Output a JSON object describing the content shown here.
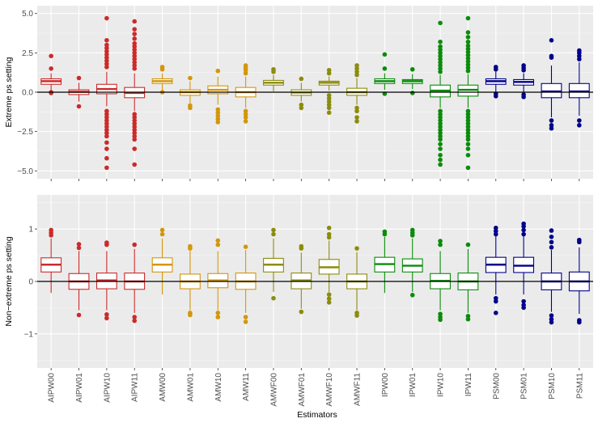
{
  "chart_data": {
    "type": "boxplot",
    "xlabel": "Estimators",
    "categories": [
      "AIPW00",
      "AIPW01",
      "AIPW10",
      "AIPW11",
      "AMW00",
      "AMW01",
      "AMW10",
      "AMW11",
      "AMWF00",
      "AMWF01",
      "AMWF10",
      "AMWF11",
      "IPW00",
      "IPW01",
      "IPW10",
      "IPW11",
      "PSM00",
      "PSM01",
      "PSM10",
      "PSM11"
    ],
    "group_colors": {
      "AIPW": "#cc2a2a",
      "AMW": "#d4960a",
      "AMWF": "#8c8c0c",
      "IPW": "#0a8c0a",
      "PSM": "#00008c"
    },
    "reference_line": 0,
    "panels": [
      {
        "ylabel": "Extreme ps setting",
        "ylim": [
          -5.5,
          5.5
        ],
        "yticks": [
          -5.0,
          -2.5,
          0.0,
          2.5,
          5.0
        ],
        "ytick_labels": [
          "−5.0",
          "−2.5",
          "0.0",
          "2.5",
          "5.0"
        ],
        "boxes": [
          {
            "q1": 0.5,
            "median": 0.7,
            "q3": 0.85,
            "wlo": 0.0,
            "whi": 1.2,
            "outliers": [
              1.5,
              2.3,
              0.0,
              -0.05
            ]
          },
          {
            "q1": -0.15,
            "median": 0.02,
            "q3": 0.15,
            "wlo": -0.6,
            "whi": 0.6,
            "outliers": [
              0.9,
              -0.9
            ]
          },
          {
            "q1": -0.1,
            "median": 0.2,
            "q3": 0.5,
            "wlo": -0.9,
            "whi": 1.3,
            "outliers": [
              1.6,
              1.8,
              2.0,
              2.2,
              2.4,
              2.6,
              2.8,
              3.0,
              3.3,
              4.7,
              -1.2,
              -1.4,
              -1.6,
              -1.8,
              -2.0,
              -2.2,
              -2.4,
              -2.6,
              -2.8,
              -3.2,
              -3.6,
              -4.2,
              -4.8
            ]
          },
          {
            "q1": -0.35,
            "median": -0.05,
            "q3": 0.3,
            "wlo": -1.2,
            "whi": 1.2,
            "outliers": [
              1.5,
              1.7,
              1.9,
              2.1,
              2.3,
              2.5,
              2.7,
              2.9,
              3.1,
              3.4,
              3.7,
              4.0,
              4.5,
              -1.4,
              -1.6,
              -1.8,
              -2.0,
              -2.2,
              -2.4,
              -2.6,
              -2.8,
              -3.0,
              -3.6,
              -4.6
            ]
          },
          {
            "q1": 0.55,
            "median": 0.7,
            "q3": 0.85,
            "wlo": 0.1,
            "whi": 1.2,
            "outliers": [
              1.45,
              1.6,
              0.0
            ]
          },
          {
            "q1": -0.2,
            "median": 0.0,
            "q3": 0.15,
            "wlo": -0.7,
            "whi": 0.7,
            "outliers": [
              0.9,
              -0.85,
              -1.0
            ]
          },
          {
            "q1": -0.1,
            "median": 0.15,
            "q3": 0.4,
            "wlo": -0.8,
            "whi": 1.0,
            "outliers": [
              1.35,
              -1.1,
              -1.3,
              -1.5,
              -1.7,
              -1.9
            ]
          },
          {
            "q1": -0.3,
            "median": 0.0,
            "q3": 0.3,
            "wlo": -1.0,
            "whi": 1.0,
            "outliers": [
              1.2,
              1.4,
              1.55,
              1.7,
              -1.2,
              -1.4,
              -1.6,
              -1.85
            ]
          },
          {
            "q1": 0.45,
            "median": 0.6,
            "q3": 0.75,
            "wlo": 0.05,
            "whi": 1.1,
            "outliers": [
              1.3,
              1.45
            ]
          },
          {
            "q1": -0.2,
            "median": -0.02,
            "q3": 0.15,
            "wlo": -0.6,
            "whi": 0.6,
            "outliers": [
              0.85,
              -0.8,
              -1.0
            ]
          },
          {
            "q1": 0.45,
            "median": 0.6,
            "q3": 0.7,
            "wlo": 0.1,
            "whi": 1.0,
            "outliers": [
              1.2,
              1.4,
              -0.2,
              -0.4,
              -0.6,
              -0.8,
              -1.0,
              -1.3
            ]
          },
          {
            "q1": -0.2,
            "median": 0.0,
            "q3": 0.25,
            "wlo": -0.8,
            "whi": 0.9,
            "outliers": [
              1.1,
              1.3,
              1.5,
              1.7,
              -1.0,
              -1.2,
              -1.6,
              -1.85
            ]
          },
          {
            "q1": 0.55,
            "median": 0.7,
            "q3": 0.85,
            "wlo": 0.15,
            "whi": 1.2,
            "outliers": [
              1.5,
              2.4,
              -0.1
            ]
          },
          {
            "q1": 0.55,
            "median": 0.7,
            "q3": 0.8,
            "wlo": 0.2,
            "whi": 1.15,
            "outliers": [
              1.45,
              -0.05
            ]
          },
          {
            "q1": -0.3,
            "median": 0.1,
            "q3": 0.45,
            "wlo": -1.0,
            "whi": 1.1,
            "outliers": [
              1.3,
              1.5,
              1.7,
              1.9,
              2.1,
              2.3,
              2.5,
              2.7,
              2.9,
              3.2,
              4.4,
              -1.2,
              -1.4,
              -1.6,
              -1.8,
              -2.0,
              -2.2,
              -2.4,
              -2.6,
              -2.8,
              -3.0,
              -3.3,
              -3.6,
              -4.0,
              -4.3,
              -4.6
            ]
          },
          {
            "q1": -0.25,
            "median": 0.15,
            "q3": 0.45,
            "wlo": -1.0,
            "whi": 1.15,
            "outliers": [
              1.35,
              1.55,
              1.75,
              1.95,
              2.15,
              2.35,
              2.55,
              2.75,
              2.95,
              3.2,
              3.5,
              3.8,
              4.7,
              -1.2,
              -1.4,
              -1.6,
              -1.8,
              -2.0,
              -2.2,
              -2.4,
              -2.6,
              -2.8,
              -3.0,
              -3.3,
              -3.6,
              -4.0,
              -4.8
            ]
          },
          {
            "q1": 0.5,
            "median": 0.7,
            "q3": 0.85,
            "wlo": 0.0,
            "whi": 1.3,
            "outliers": [
              1.45,
              1.6,
              -0.1,
              -0.25
            ]
          },
          {
            "q1": 0.45,
            "median": 0.65,
            "q3": 0.8,
            "wlo": 0.0,
            "whi": 1.2,
            "outliers": [
              1.4,
              1.55,
              1.7,
              -0.15,
              -0.3
            ]
          },
          {
            "q1": -0.35,
            "median": 0.05,
            "q3": 0.55,
            "wlo": -1.6,
            "whi": 1.7,
            "outliers": [
              2.2,
              2.3,
              3.3,
              -1.8,
              -2.1,
              -2.3
            ]
          },
          {
            "q1": -0.35,
            "median": 0.05,
            "q3": 0.55,
            "wlo": -1.5,
            "whi": 1.9,
            "outliers": [
              2.1,
              2.3,
              2.5,
              2.65,
              -1.8,
              -2.1
            ]
          }
        ]
      },
      {
        "ylabel": "Non−extreme ps setting",
        "ylim": [
          -1.65,
          1.65
        ],
        "yticks": [
          -1,
          0,
          1
        ],
        "ytick_labels": [
          "−1",
          "0",
          "1"
        ],
        "boxes": [
          {
            "q1": 0.18,
            "median": 0.32,
            "q3": 0.45,
            "wlo": -0.22,
            "whi": 0.82,
            "outliers": [
              0.88,
              0.93,
              0.98
            ]
          },
          {
            "q1": -0.15,
            "median": 0.0,
            "q3": 0.15,
            "wlo": -0.55,
            "whi": 0.58,
            "outliers": [
              0.64,
              0.71,
              -0.64
            ]
          },
          {
            "q1": -0.14,
            "median": 0.02,
            "q3": 0.16,
            "wlo": -0.55,
            "whi": 0.58,
            "outliers": [
              0.7,
              0.74,
              -0.63,
              -0.7
            ]
          },
          {
            "q1": -0.15,
            "median": 0.0,
            "q3": 0.16,
            "wlo": -0.6,
            "whi": 0.62,
            "outliers": [
              0.7,
              -0.68,
              -0.75
            ]
          },
          {
            "q1": 0.18,
            "median": 0.32,
            "q3": 0.45,
            "wlo": -0.25,
            "whi": 0.82,
            "outliers": [
              0.9,
              0.98
            ]
          },
          {
            "q1": -0.14,
            "median": 0.0,
            "q3": 0.14,
            "wlo": -0.55,
            "whi": 0.58,
            "outliers": [
              0.63,
              0.67,
              -0.6,
              -0.64
            ]
          },
          {
            "q1": -0.12,
            "median": 0.02,
            "q3": 0.15,
            "wlo": -0.55,
            "whi": 0.58,
            "outliers": [
              0.7,
              0.78,
              -0.6,
              -0.68
            ]
          },
          {
            "q1": -0.15,
            "median": 0.0,
            "q3": 0.16,
            "wlo": -0.6,
            "whi": 0.6,
            "outliers": [
              0.66,
              -0.68,
              -0.77
            ]
          },
          {
            "q1": 0.18,
            "median": 0.32,
            "q3": 0.44,
            "wlo": -0.2,
            "whi": 0.82,
            "outliers": [
              0.9,
              0.98,
              -0.32
            ]
          },
          {
            "q1": -0.14,
            "median": 0.02,
            "q3": 0.16,
            "wlo": -0.52,
            "whi": 0.55,
            "outliers": [
              0.63,
              0.67,
              -0.58
            ]
          },
          {
            "q1": 0.14,
            "median": 0.27,
            "q3": 0.42,
            "wlo": -0.2,
            "whi": 0.78,
            "outliers": [
              0.84,
              0.9,
              1.02,
              -0.25,
              -0.33,
              -0.4
            ]
          },
          {
            "q1": -0.14,
            "median": 0.0,
            "q3": 0.14,
            "wlo": -0.55,
            "whi": 0.56,
            "outliers": [
              0.63,
              -0.6,
              -0.65
            ]
          },
          {
            "q1": 0.18,
            "median": 0.33,
            "q3": 0.46,
            "wlo": -0.22,
            "whi": 0.85,
            "outliers": [
              0.9,
              0.95
            ]
          },
          {
            "q1": 0.18,
            "median": 0.3,
            "q3": 0.43,
            "wlo": -0.2,
            "whi": 0.82,
            "outliers": [
              0.88,
              0.93,
              0.98,
              -0.26
            ]
          },
          {
            "q1": -0.14,
            "median": 0.01,
            "q3": 0.15,
            "wlo": -0.55,
            "whi": 0.58,
            "outliers": [
              0.7,
              0.77,
              -0.62,
              -0.68,
              -0.73
            ]
          },
          {
            "q1": -0.16,
            "median": 0.0,
            "q3": 0.16,
            "wlo": -0.6,
            "whi": 0.62,
            "outliers": [
              0.7,
              -0.66,
              -0.72
            ]
          },
          {
            "q1": 0.17,
            "median": 0.32,
            "q3": 0.46,
            "wlo": -0.25,
            "whi": 0.86,
            "outliers": [
              0.9,
              0.96,
              1.02,
              -0.32,
              -0.38,
              -0.6
            ]
          },
          {
            "q1": 0.17,
            "median": 0.3,
            "q3": 0.46,
            "wlo": -0.25,
            "whi": 0.86,
            "outliers": [
              0.9,
              0.98,
              1.05,
              1.1,
              -0.38,
              -0.45,
              -0.5
            ]
          },
          {
            "q1": -0.16,
            "median": 0.0,
            "q3": 0.16,
            "wlo": -0.58,
            "whi": 0.6,
            "outliers": [
              0.65,
              0.75,
              0.85,
              0.97,
              -0.65,
              -0.72,
              -0.78
            ]
          },
          {
            "q1": -0.18,
            "median": 0.0,
            "q3": 0.18,
            "wlo": -0.62,
            "whi": 0.65,
            "outliers": [
              0.75,
              0.79,
              -0.74,
              -0.78
            ]
          }
        ]
      }
    ]
  }
}
